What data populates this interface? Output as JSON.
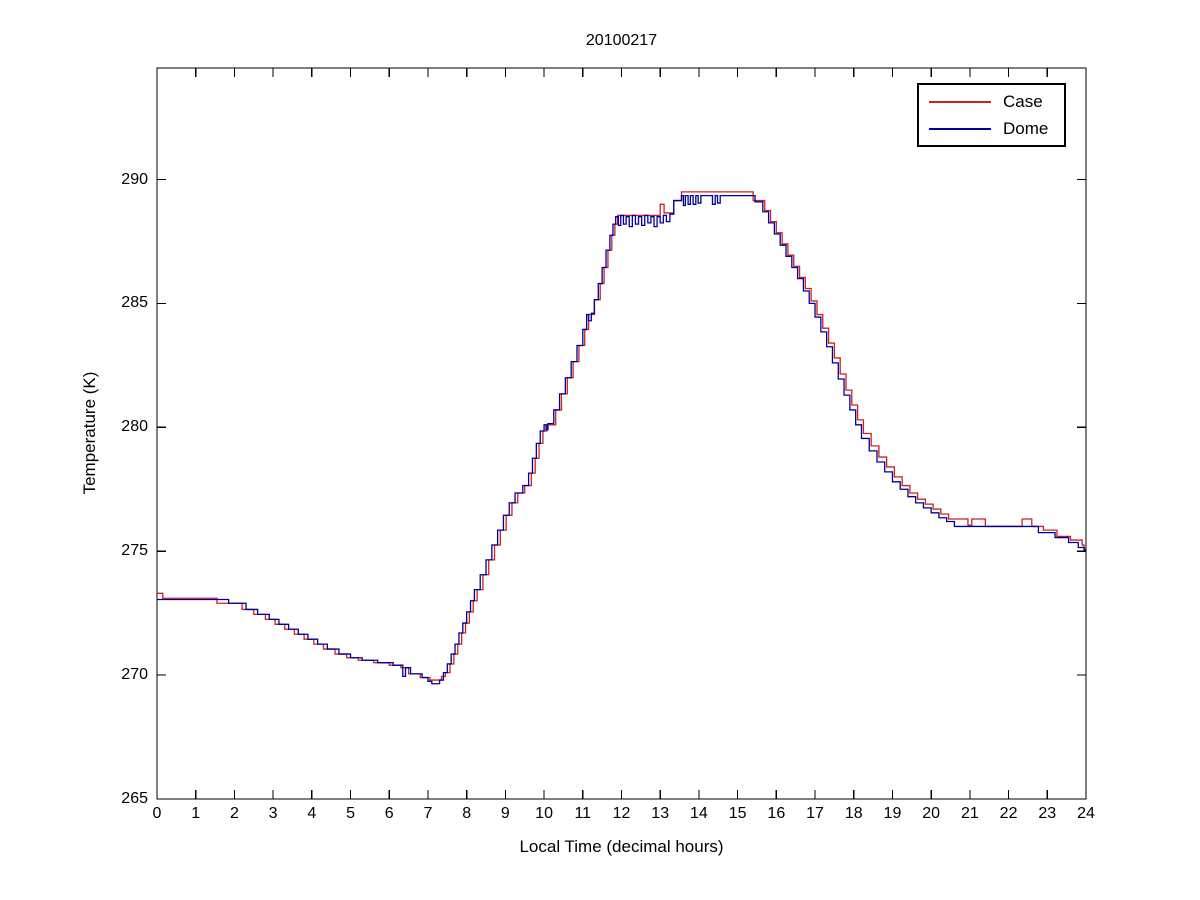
{
  "chart_data": {
    "type": "line",
    "title": "20100217",
    "xlabel": "Local Time (decimal hours)",
    "ylabel": "Temperature (K)",
    "xlim": [
      0,
      24
    ],
    "ylim": [
      265,
      294.5
    ],
    "x_ticks": [
      0,
      1,
      2,
      3,
      4,
      5,
      6,
      7,
      8,
      9,
      10,
      11,
      12,
      13,
      14,
      15,
      16,
      17,
      18,
      19,
      20,
      21,
      22,
      23,
      24
    ],
    "y_ticks": [
      265,
      270,
      275,
      280,
      285,
      290
    ],
    "grid": false,
    "legend_position": "top-right",
    "line_style": "stairs",
    "series": [
      {
        "name": "Case",
        "color": "#cc2222",
        "step_points": [
          [
            0,
            273.3
          ],
          [
            0.15,
            273.1
          ],
          [
            1.55,
            272.9
          ],
          [
            2.2,
            272.65
          ],
          [
            2.5,
            272.45
          ],
          [
            2.8,
            272.25
          ],
          [
            3.05,
            272.05
          ],
          [
            3.3,
            271.85
          ],
          [
            3.55,
            271.65
          ],
          [
            3.8,
            271.45
          ],
          [
            4.05,
            271.25
          ],
          [
            4.3,
            271.05
          ],
          [
            4.6,
            270.85
          ],
          [
            4.9,
            270.7
          ],
          [
            5.2,
            270.6
          ],
          [
            5.6,
            270.5
          ],
          [
            6.0,
            270.4
          ],
          [
            6.3,
            270.3
          ],
          [
            6.5,
            270.05
          ],
          [
            6.8,
            269.9
          ],
          [
            7.05,
            269.8
          ],
          [
            7.35,
            269.95
          ],
          [
            7.45,
            270.1
          ],
          [
            7.57,
            270.45
          ],
          [
            7.67,
            270.85
          ],
          [
            7.77,
            271.25
          ],
          [
            7.87,
            271.7
          ],
          [
            7.97,
            272.1
          ],
          [
            8.07,
            272.55
          ],
          [
            8.17,
            273.0
          ],
          [
            8.27,
            273.45
          ],
          [
            8.42,
            274.05
          ],
          [
            8.57,
            274.65
          ],
          [
            8.72,
            275.25
          ],
          [
            8.87,
            275.85
          ],
          [
            9.02,
            276.45
          ],
          [
            9.17,
            276.95
          ],
          [
            9.32,
            277.35
          ],
          [
            9.5,
            277.65
          ],
          [
            9.67,
            278.15
          ],
          [
            9.77,
            278.75
          ],
          [
            9.87,
            279.35
          ],
          [
            9.97,
            279.85
          ],
          [
            10.07,
            280.1
          ],
          [
            10.3,
            280.7
          ],
          [
            10.45,
            281.35
          ],
          [
            10.6,
            282.0
          ],
          [
            10.75,
            282.65
          ],
          [
            10.9,
            283.3
          ],
          [
            11.05,
            283.95
          ],
          [
            11.15,
            284.55
          ],
          [
            11.3,
            285.15
          ],
          [
            11.45,
            285.8
          ],
          [
            11.55,
            286.45
          ],
          [
            11.65,
            287.15
          ],
          [
            11.75,
            287.75
          ],
          [
            11.83,
            288.2
          ],
          [
            11.9,
            288.55
          ],
          [
            13.0,
            289.0
          ],
          [
            13.1,
            288.65
          ],
          [
            13.35,
            289.15
          ],
          [
            13.55,
            289.5
          ],
          [
            15.4,
            289.15
          ],
          [
            15.7,
            288.75
          ],
          [
            15.85,
            288.3
          ],
          [
            16.0,
            287.85
          ],
          [
            16.15,
            287.4
          ],
          [
            16.3,
            286.95
          ],
          [
            16.45,
            286.5
          ],
          [
            16.6,
            286.05
          ],
          [
            16.75,
            285.6
          ],
          [
            16.9,
            285.1
          ],
          [
            17.05,
            284.55
          ],
          [
            17.2,
            284.0
          ],
          [
            17.35,
            283.4
          ],
          [
            17.5,
            282.8
          ],
          [
            17.65,
            282.15
          ],
          [
            17.8,
            281.5
          ],
          [
            17.95,
            280.9
          ],
          [
            18.1,
            280.3
          ],
          [
            18.25,
            279.75
          ],
          [
            18.45,
            279.25
          ],
          [
            18.65,
            278.8
          ],
          [
            18.85,
            278.4
          ],
          [
            19.05,
            278.0
          ],
          [
            19.25,
            277.65
          ],
          [
            19.45,
            277.35
          ],
          [
            19.65,
            277.1
          ],
          [
            19.85,
            276.9
          ],
          [
            20.05,
            276.7
          ],
          [
            20.25,
            276.5
          ],
          [
            20.45,
            276.3
          ],
          [
            20.95,
            276.05
          ],
          [
            21.05,
            276.3
          ],
          [
            21.4,
            276.0
          ],
          [
            22.35,
            276.3
          ],
          [
            22.6,
            276.0
          ],
          [
            22.9,
            275.85
          ],
          [
            23.25,
            275.6
          ],
          [
            23.6,
            275.45
          ],
          [
            23.9,
            275.25
          ],
          [
            23.95,
            275.1
          ],
          [
            24,
            275.1
          ]
        ]
      },
      {
        "name": "Dome",
        "color": "#000099",
        "step_points": [
          [
            0,
            273.05
          ],
          [
            1.85,
            272.9
          ],
          [
            2.3,
            272.65
          ],
          [
            2.6,
            272.45
          ],
          [
            2.9,
            272.25
          ],
          [
            3.15,
            272.05
          ],
          [
            3.4,
            271.85
          ],
          [
            3.65,
            271.65
          ],
          [
            3.9,
            271.45
          ],
          [
            4.15,
            271.25
          ],
          [
            4.4,
            271.05
          ],
          [
            4.7,
            270.85
          ],
          [
            5.0,
            270.7
          ],
          [
            5.3,
            270.6
          ],
          [
            5.7,
            270.5
          ],
          [
            6.1,
            270.4
          ],
          [
            6.35,
            269.95
          ],
          [
            6.42,
            270.3
          ],
          [
            6.55,
            270.05
          ],
          [
            6.85,
            269.9
          ],
          [
            7.0,
            269.75
          ],
          [
            7.1,
            269.65
          ],
          [
            7.3,
            269.8
          ],
          [
            7.4,
            270.1
          ],
          [
            7.5,
            270.45
          ],
          [
            7.6,
            270.85
          ],
          [
            7.7,
            271.25
          ],
          [
            7.8,
            271.7
          ],
          [
            7.9,
            272.1
          ],
          [
            8.0,
            272.55
          ],
          [
            8.1,
            273.0
          ],
          [
            8.2,
            273.45
          ],
          [
            8.35,
            274.05
          ],
          [
            8.5,
            274.65
          ],
          [
            8.65,
            275.25
          ],
          [
            8.8,
            275.85
          ],
          [
            8.95,
            276.45
          ],
          [
            9.1,
            276.95
          ],
          [
            9.25,
            277.35
          ],
          [
            9.45,
            277.65
          ],
          [
            9.6,
            278.15
          ],
          [
            9.7,
            278.75
          ],
          [
            9.8,
            279.35
          ],
          [
            9.9,
            279.85
          ],
          [
            10.0,
            280.1
          ],
          [
            10.05,
            279.9
          ],
          [
            10.1,
            280.15
          ],
          [
            10.25,
            280.7
          ],
          [
            10.4,
            281.35
          ],
          [
            10.55,
            282.0
          ],
          [
            10.7,
            282.65
          ],
          [
            10.85,
            283.3
          ],
          [
            11.0,
            283.95
          ],
          [
            11.1,
            284.55
          ],
          [
            11.15,
            284.3
          ],
          [
            11.22,
            284.6
          ],
          [
            11.3,
            285.15
          ],
          [
            11.4,
            285.8
          ],
          [
            11.5,
            286.45
          ],
          [
            11.6,
            287.15
          ],
          [
            11.7,
            287.75
          ],
          [
            11.78,
            288.2
          ],
          [
            11.85,
            288.5
          ],
          [
            11.92,
            288.15
          ],
          [
            11.98,
            288.55
          ],
          [
            12.05,
            288.2
          ],
          [
            12.12,
            288.5
          ],
          [
            12.2,
            288.1
          ],
          [
            12.28,
            288.55
          ],
          [
            12.36,
            288.2
          ],
          [
            12.44,
            288.5
          ],
          [
            12.52,
            288.15
          ],
          [
            12.6,
            288.55
          ],
          [
            12.68,
            288.25
          ],
          [
            12.76,
            288.5
          ],
          [
            12.84,
            288.1
          ],
          [
            12.92,
            288.5
          ],
          [
            13.0,
            288.25
          ],
          [
            13.08,
            288.55
          ],
          [
            13.16,
            288.3
          ],
          [
            13.25,
            288.6
          ],
          [
            13.35,
            289.15
          ],
          [
            13.55,
            289.35
          ],
          [
            13.6,
            288.95
          ],
          [
            13.65,
            289.35
          ],
          [
            13.72,
            289.0
          ],
          [
            13.78,
            289.35
          ],
          [
            13.85,
            289.0
          ],
          [
            13.92,
            289.35
          ],
          [
            13.98,
            289.05
          ],
          [
            14.05,
            289.35
          ],
          [
            14.35,
            289.0
          ],
          [
            14.42,
            289.35
          ],
          [
            14.48,
            289.05
          ],
          [
            14.55,
            289.35
          ],
          [
            15.45,
            289.1
          ],
          [
            15.65,
            288.7
          ],
          [
            15.8,
            288.25
          ],
          [
            15.95,
            287.8
          ],
          [
            16.1,
            287.35
          ],
          [
            16.25,
            286.9
          ],
          [
            16.4,
            286.45
          ],
          [
            16.55,
            286.0
          ],
          [
            16.7,
            285.5
          ],
          [
            16.85,
            285.0
          ],
          [
            17.0,
            284.45
          ],
          [
            17.15,
            283.85
          ],
          [
            17.3,
            283.25
          ],
          [
            17.45,
            282.6
          ],
          [
            17.6,
            281.95
          ],
          [
            17.75,
            281.3
          ],
          [
            17.9,
            280.7
          ],
          [
            18.05,
            280.1
          ],
          [
            18.2,
            279.55
          ],
          [
            18.4,
            279.05
          ],
          [
            18.6,
            278.6
          ],
          [
            18.8,
            278.2
          ],
          [
            19.0,
            277.8
          ],
          [
            19.2,
            277.5
          ],
          [
            19.4,
            277.2
          ],
          [
            19.6,
            276.95
          ],
          [
            19.8,
            276.75
          ],
          [
            20.0,
            276.55
          ],
          [
            20.2,
            276.35
          ],
          [
            20.4,
            276.2
          ],
          [
            20.6,
            276.0
          ],
          [
            22.77,
            275.75
          ],
          [
            23.2,
            275.55
          ],
          [
            23.55,
            275.35
          ],
          [
            23.8,
            275.15
          ],
          [
            23.95,
            275.05
          ],
          [
            24,
            275.05
          ]
        ]
      }
    ]
  },
  "legend": {
    "entries": [
      {
        "label": "Case",
        "color": "#cc2222"
      },
      {
        "label": "Dome",
        "color": "#000099"
      }
    ]
  },
  "axis": {
    "color": "#000000",
    "background": "#ffffff"
  }
}
